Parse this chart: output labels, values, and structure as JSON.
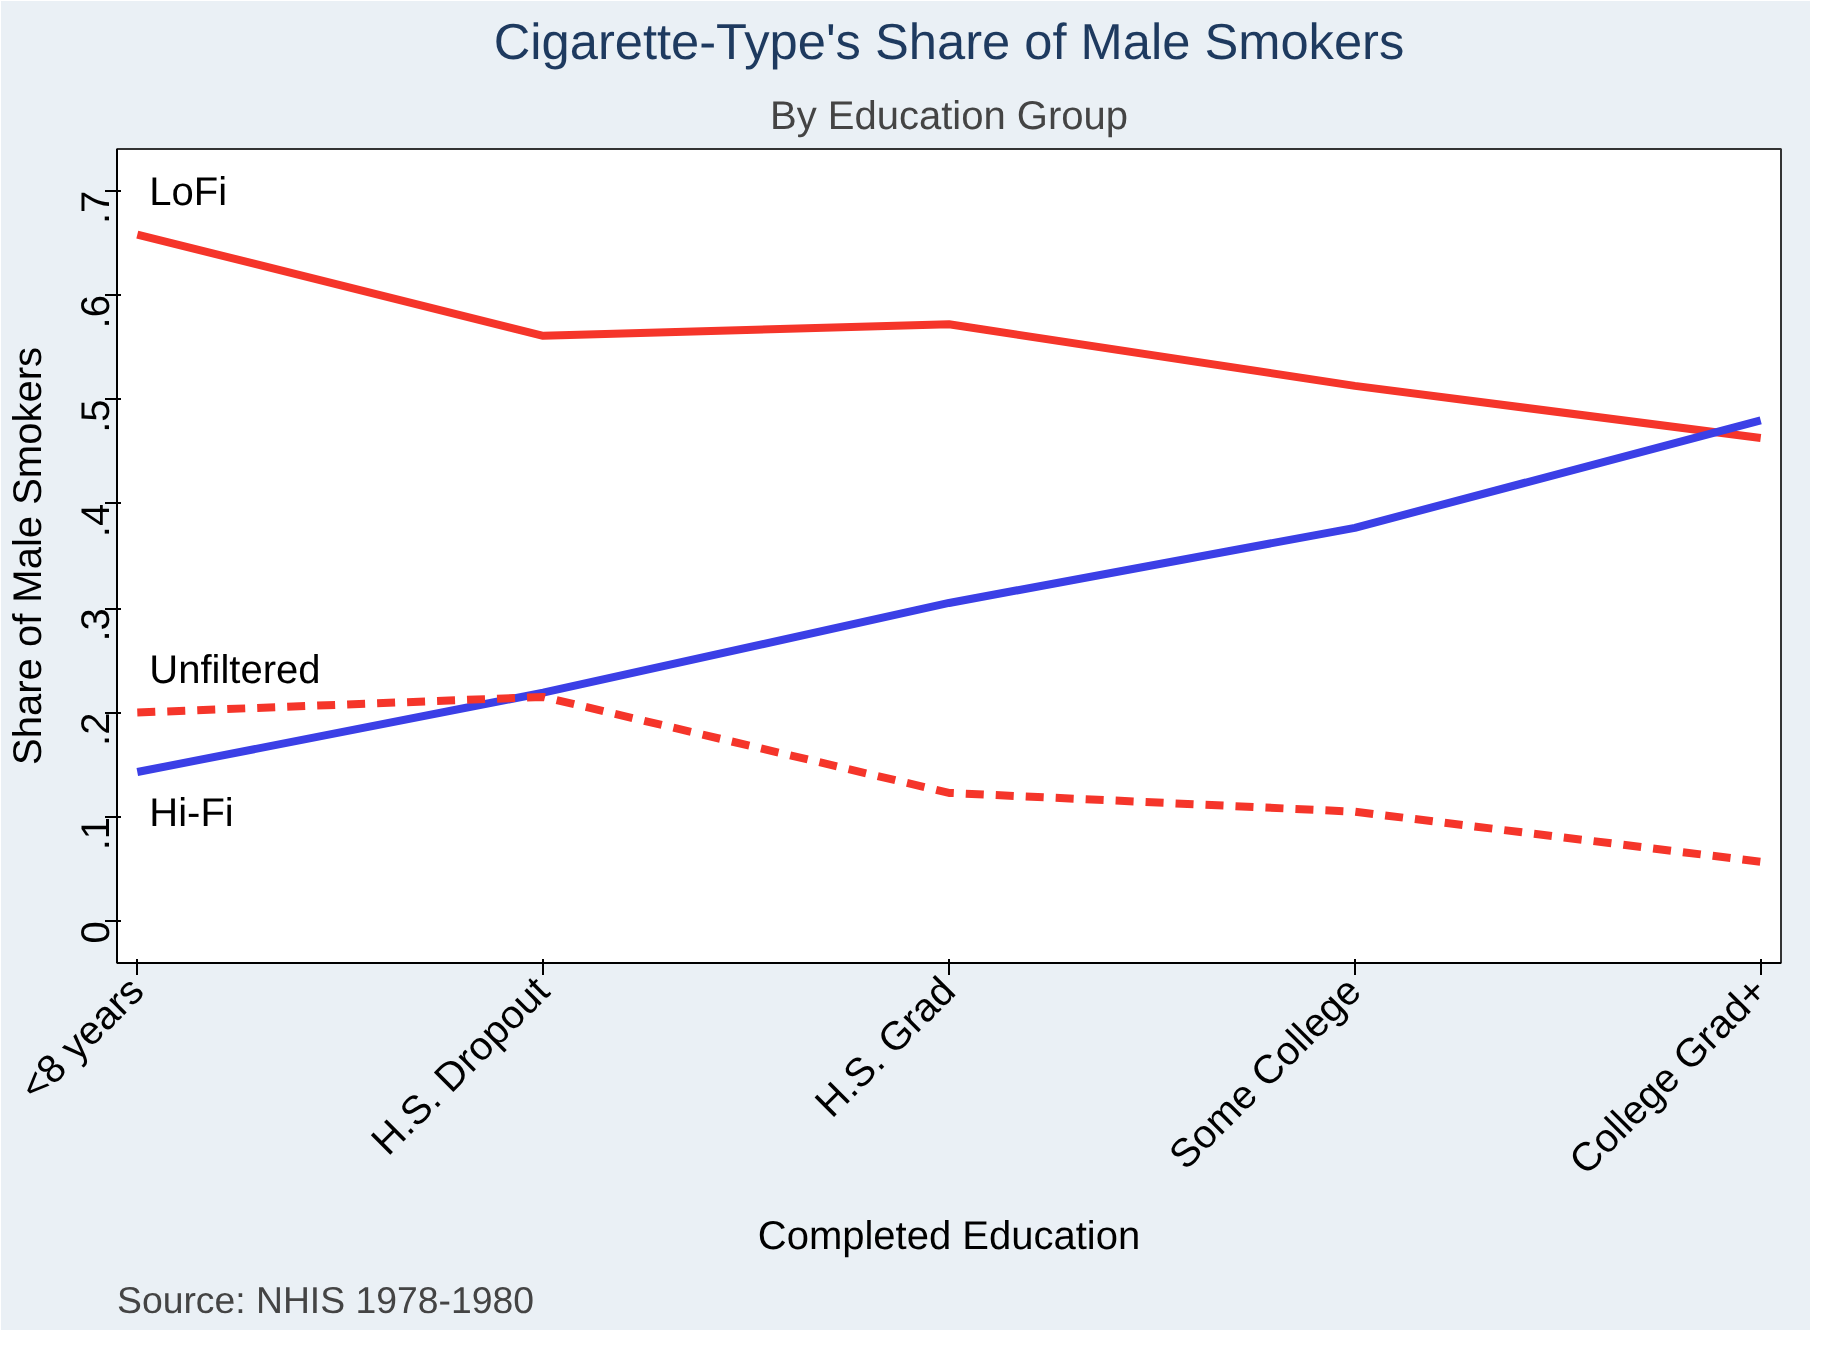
{
  "chart_data": {
    "type": "line",
    "title": "Cigarette-Type's Share of Male Smokers",
    "subtitle": "By Education Group",
    "xlabel": "Completed Education",
    "ylabel": "Share of Male Smokers",
    "categories": [
      "<8 years",
      "H.S. Dropout",
      "H.S. Grad",
      "Some College",
      "College Grad+"
    ],
    "series": [
      {
        "name": "LoFi",
        "color": "#f5352a",
        "values": [
          0.658,
          0.561,
          0.572,
          0.513,
          0.463
        ]
      },
      {
        "name": "Hi-Fi",
        "color": "#3b3fe6",
        "values": [
          0.143,
          0.219,
          0.305,
          0.377,
          0.48
        ]
      },
      {
        "name": "Unfiltered",
        "color": "#f5352a",
        "line_style": "dashed",
        "values": [
          0.2,
          0.215,
          0.123,
          0.105,
          0.057
        ]
      }
    ],
    "ylim": [
      -0.04,
      0.74
    ],
    "yticks": [
      0,
      {
        "value": 0.1,
        "label": ".1"
      },
      {
        "value": 0.2,
        "label": ".2"
      },
      {
        "value": 0.3,
        "label": ".3"
      },
      {
        "value": 0.4,
        "label": ".4"
      },
      {
        "value": 0.5,
        "label": ".5"
      },
      {
        "value": 0.6,
        "label": ".6"
      },
      {
        "value": 0.7,
        "label": ".7"
      }
    ],
    "grid": false,
    "annotations": [
      "Source: NHIS 1978-1980"
    ]
  }
}
